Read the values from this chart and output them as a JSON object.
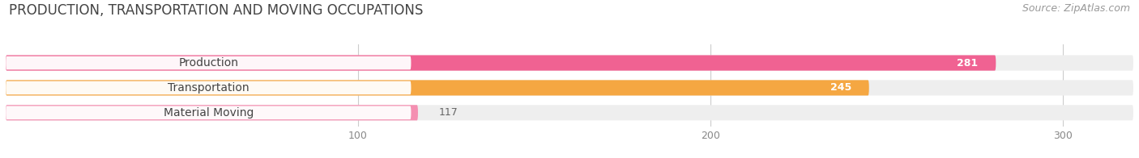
{
  "title": "PRODUCTION, TRANSPORTATION AND MOVING OCCUPATIONS",
  "source": "Source: ZipAtlas.com",
  "categories": [
    "Production",
    "Transportation",
    "Material Moving"
  ],
  "values": [
    281,
    245,
    117
  ],
  "bar_colors": [
    "#f06292",
    "#f5a742",
    "#f48fb1"
  ],
  "bar_bg_color": "#eeeeee",
  "xlim": [
    0,
    320
  ],
  "xticks": [
    100,
    200,
    300
  ],
  "title_fontsize": 12,
  "source_fontsize": 9,
  "label_fontsize": 10,
  "value_fontsize": 9,
  "figsize": [
    14.06,
    1.96
  ],
  "dpi": 100
}
